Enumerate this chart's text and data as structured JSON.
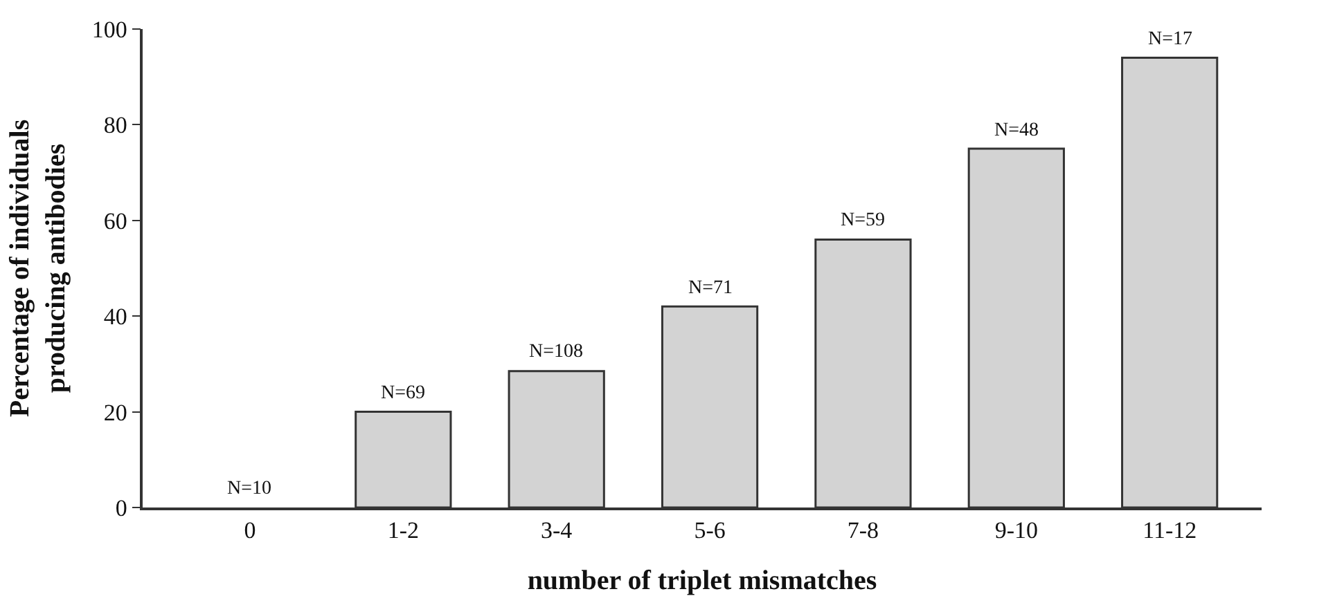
{
  "chart_data": {
    "type": "bar",
    "xlabel": "number of triplet mismatches",
    "ylabel": "Percentage of individuals\nproducing antibodies",
    "categories": [
      "0",
      "1-2",
      "3-4",
      "5-6",
      "7-8",
      "9-10",
      "11-12"
    ],
    "values": [
      0,
      20,
      28.5,
      42,
      56,
      75,
      94
    ],
    "annotations": [
      {
        "text": "N=10",
        "x": "0",
        "y": 0
      },
      {
        "text": "N=69",
        "x": "1-2",
        "y": 20
      },
      {
        "text": "N=108",
        "x": "3-4",
        "y": 28.5
      },
      {
        "text": "N=71",
        "x": "5-6",
        "y": 42
      },
      {
        "text": "N=59",
        "x": "7-8",
        "y": 56
      },
      {
        "text": "N=48",
        "x": "9-10",
        "y": 75
      },
      {
        "text": "N=17",
        "x": "11-12",
        "y": 94
      }
    ],
    "color": "#d3d3d3",
    "ylim": [
      0,
      100
    ],
    "yticks": [
      0,
      20,
      40,
      60,
      80,
      100
    ],
    "grid": false
  }
}
